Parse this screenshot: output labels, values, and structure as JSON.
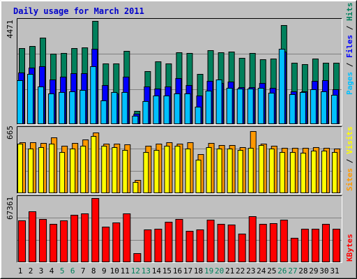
{
  "title": "Daily usage for March 2011",
  "colors": {
    "background": "#c0c0c0",
    "panel": "#c0c0c0",
    "grid": "#808080",
    "title": "#0000cc",
    "hits": "#00805c",
    "files": "#0000ff",
    "pages": "#00c0ff",
    "visits": "#ffff00",
    "sites": "#ff9900",
    "kbytes": "#ff0000"
  },
  "legend": {
    "top": [
      {
        "label": "Pages",
        "color": "#00c0ff"
      },
      {
        "label": " / ",
        "color": "#000000"
      },
      {
        "label": "Files",
        "color": "#0000ff"
      },
      {
        "label": " / ",
        "color": "#000000"
      },
      {
        "label": "Hits",
        "color": "#00805c"
      }
    ],
    "middle": [
      {
        "label": "Sites",
        "color": "#ff9900"
      },
      {
        "label": " / ",
        "color": "#000000"
      },
      {
        "label": "Visits",
        "color": "#ffff00"
      }
    ],
    "bottom": [
      {
        "label": "KBytes",
        "color": "#ff0000"
      }
    ]
  },
  "chart_data": [
    {
      "type": "bar",
      "panel": "hits-files-pages",
      "x": [
        1,
        2,
        3,
        4,
        5,
        6,
        7,
        8,
        9,
        10,
        11,
        12,
        13,
        14,
        15,
        16,
        17,
        18,
        19,
        20,
        21,
        22,
        23,
        24,
        25,
        26,
        27,
        28,
        29,
        30,
        31
      ],
      "ymax_label": "4471",
      "ylim": [
        0,
        4471
      ],
      "series": [
        {
          "name": "Hits",
          "values": [
            3300,
            3380,
            3740,
            3040,
            3090,
            3290,
            3330,
            4471,
            2620,
            2620,
            3180,
            580,
            2310,
            2730,
            2640,
            3120,
            3090,
            2190,
            3200,
            3120,
            3150,
            2880,
            3090,
            2810,
            2850,
            4300,
            2660,
            2600,
            2830,
            2650,
            2650
          ]
        },
        {
          "name": "Files",
          "values": [
            2230,
            2460,
            2520,
            1930,
            2050,
            2210,
            2210,
            3250,
            1690,
            1330,
            2050,
            440,
            1640,
            1540,
            1630,
            1980,
            1690,
            1230,
            1870,
            1780,
            1830,
            1590,
            1610,
            1780,
            1570,
            3130,
            1410,
            1420,
            1870,
            1890,
            1520
          ]
        },
        {
          "name": "Pages",
          "values": [
            1910,
            2160,
            1640,
            1330,
            1380,
            1420,
            1490,
            2510,
            1020,
            1380,
            1390,
            360,
            1000,
            1240,
            1230,
            1320,
            1330,
            760,
            1440,
            1930,
            1560,
            1530,
            1540,
            1580,
            1360,
            3250,
            1310,
            1400,
            1520,
            1430,
            1280
          ]
        }
      ]
    },
    {
      "type": "bar",
      "panel": "sites-visits",
      "x": [
        1,
        2,
        3,
        4,
        5,
        6,
        7,
        8,
        9,
        10,
        11,
        12,
        13,
        14,
        15,
        16,
        17,
        18,
        19,
        20,
        21,
        22,
        23,
        24,
        25,
        26,
        27,
        28,
        29,
        30,
        31
      ],
      "ymax_label": "665",
      "ylim": [
        0,
        665
      ],
      "series": [
        {
          "name": "Sites",
          "values": [
            530,
            530,
            520,
            575,
            490,
            520,
            555,
            630,
            515,
            510,
            505,
            140,
            490,
            510,
            530,
            515,
            530,
            405,
            520,
            500,
            500,
            480,
            640,
            515,
            490,
            470,
            470,
            470,
            480,
            470,
            465
          ]
        },
        {
          "name": "Visits",
          "values": [
            515,
            460,
            480,
            510,
            425,
            460,
            490,
            590,
            495,
            475,
            450,
            115,
            430,
            445,
            490,
            495,
            460,
            350,
            480,
            465,
            465,
            450,
            470,
            500,
            460,
            425,
            425,
            420,
            440,
            440,
            425
          ]
        }
      ]
    },
    {
      "type": "bar",
      "panel": "kbytes",
      "x": [
        1,
        2,
        3,
        4,
        5,
        6,
        7,
        8,
        9,
        10,
        11,
        12,
        13,
        14,
        15,
        16,
        17,
        18,
        19,
        20,
        21,
        22,
        23,
        24,
        25,
        26,
        27,
        28,
        29,
        30,
        31
      ],
      "ymax_label": "67361",
      "ylim": [
        0,
        67361
      ],
      "series": [
        {
          "name": "KBytes",
          "values": [
            44100,
            53300,
            45100,
            40500,
            44100,
            49800,
            51100,
            67361,
            37100,
            41800,
            51000,
            9800,
            34400,
            35500,
            42700,
            45500,
            32700,
            34700,
            44700,
            40000,
            39800,
            30100,
            48100,
            40000,
            40700,
            44700,
            25300,
            35200,
            35500,
            40200,
            35000
          ]
        }
      ]
    }
  ]
}
